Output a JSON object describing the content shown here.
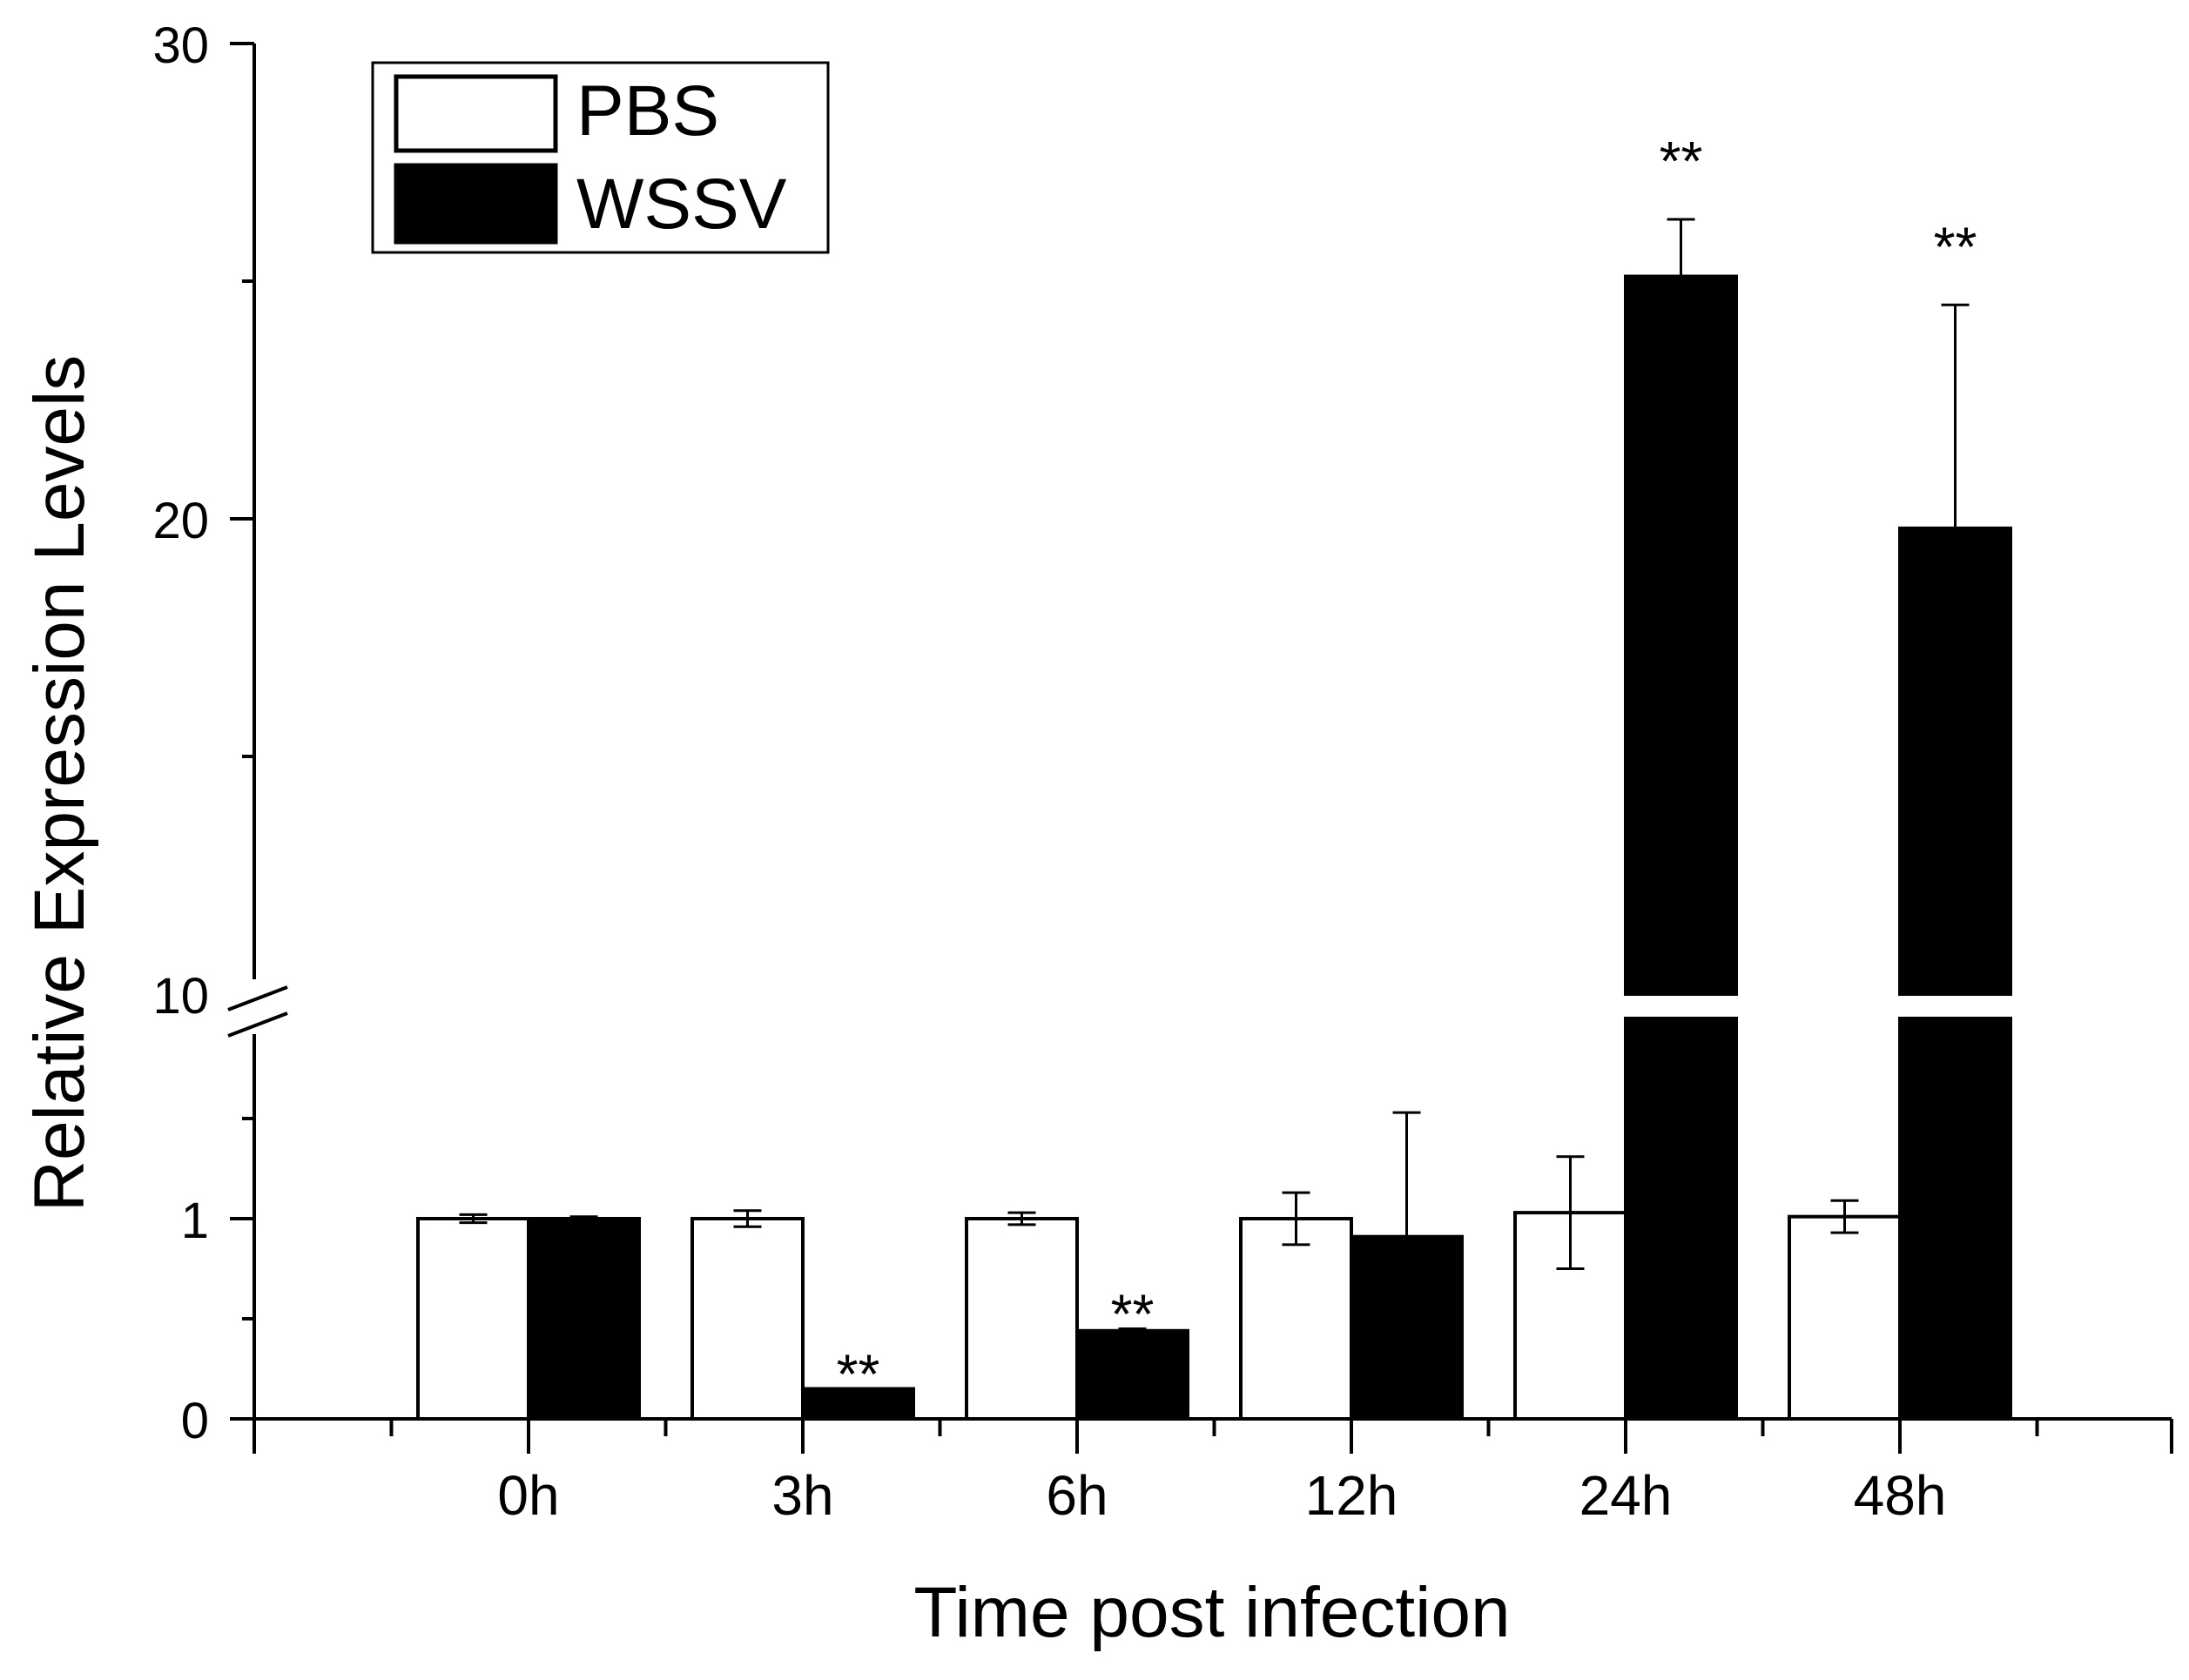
{
  "chart_data": {
    "type": "bar",
    "title": "",
    "xlabel": "Time post infection",
    "ylabel": "Relative Expression Levels",
    "categories": [
      "0h",
      "3h",
      "6h",
      "12h",
      "24h",
      "48h"
    ],
    "series": [
      {
        "name": "PBS",
        "fill": "#ffffff",
        "values": [
          1.0,
          1.0,
          1.0,
          1.0,
          1.03,
          1.01
        ],
        "errors": [
          0.02,
          0.04,
          0.03,
          0.13,
          0.28,
          0.08
        ],
        "significance": [
          "",
          "",
          "",
          "",
          "",
          ""
        ]
      },
      {
        "name": "WSSV",
        "fill": "#000000",
        "values": [
          1.0,
          0.15,
          0.44,
          0.91,
          25.1,
          19.8
        ],
        "errors": [
          0.01,
          0.0,
          0.01,
          0.62,
          1.2,
          4.7
        ],
        "significance": [
          "",
          "**",
          "**",
          "",
          "**",
          "**"
        ]
      }
    ],
    "y_axis": {
      "broken": true,
      "lower_segment": {
        "range": [
          0,
          2.0
        ],
        "major_ticks": [
          0,
          1
        ],
        "minor_ticks": [
          0.5,
          1.5
        ]
      },
      "upper_segment": {
        "range": [
          10,
          30
        ],
        "major_ticks": [
          10,
          20,
          30
        ],
        "minor_ticks": [
          15,
          25
        ]
      },
      "tick_labels": [
        "0",
        "1",
        "10",
        "20",
        "30"
      ]
    },
    "legend": {
      "placement": "top-left",
      "entries": [
        "PBS",
        "WSSV"
      ]
    },
    "grid": false,
    "colors": {
      "axis": "#000000",
      "pbs": "#ffffff",
      "wssv": "#000000"
    }
  }
}
